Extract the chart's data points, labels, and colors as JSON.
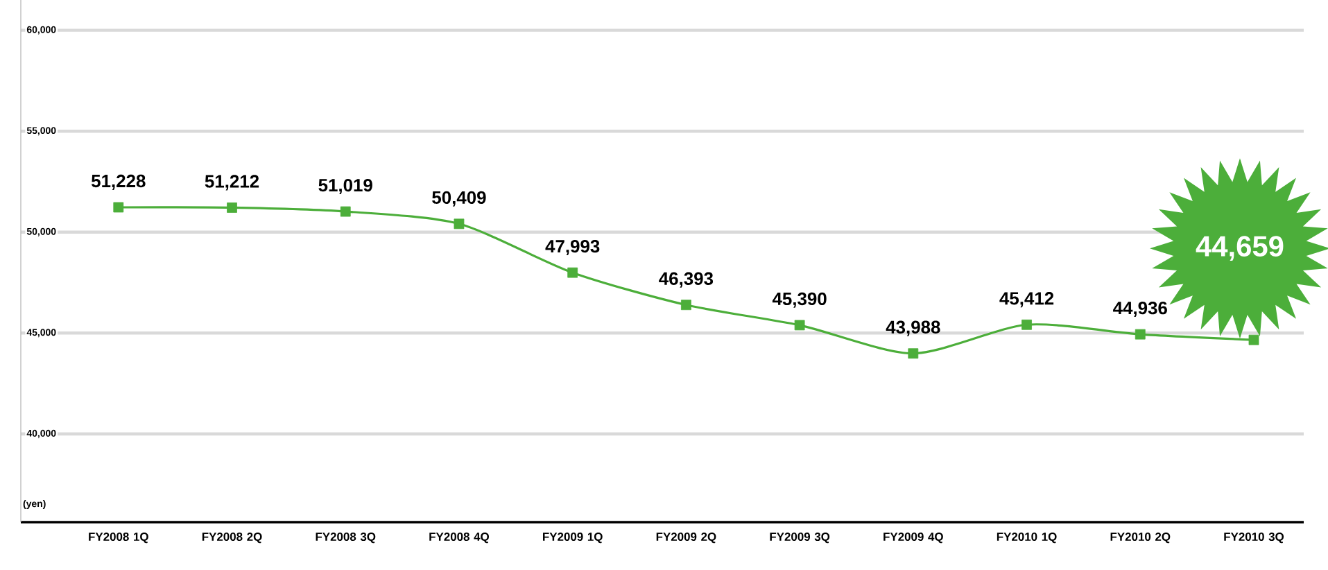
{
  "chart_data": {
    "type": "line",
    "ylabel": "(yen)",
    "categories": [
      "FY2008 1Q",
      "FY2008 2Q",
      "FY2008 3Q",
      "FY2008 4Q",
      "FY2009 1Q",
      "FY2009 2Q",
      "FY2009 3Q",
      "FY2009 4Q",
      "FY2010 1Q",
      "FY2010 2Q",
      "FY2010 3Q"
    ],
    "values": [
      51228,
      51212,
      51019,
      50409,
      47993,
      46393,
      45390,
      43988,
      45412,
      44936,
      44659
    ],
    "value_labels": [
      "51,228",
      "51,212",
      "51,019",
      "50,409",
      "47,993",
      "46,393",
      "45,390",
      "43,988",
      "45,412",
      "44,936",
      "44,659"
    ],
    "color": "#4cae3a",
    "marker": "square",
    "line_style": "solid",
    "grid": "y",
    "ylim": [
      35630,
      61500
    ],
    "yticks": [
      {
        "value": 40000,
        "label": "40,000"
      },
      {
        "value": 45000,
        "label": "45,000"
      },
      {
        "value": 50000,
        "label": "50,000"
      },
      {
        "value": 55000,
        "label": "55,000"
      },
      {
        "value": 60000,
        "label": "60,000"
      }
    ]
  }
}
